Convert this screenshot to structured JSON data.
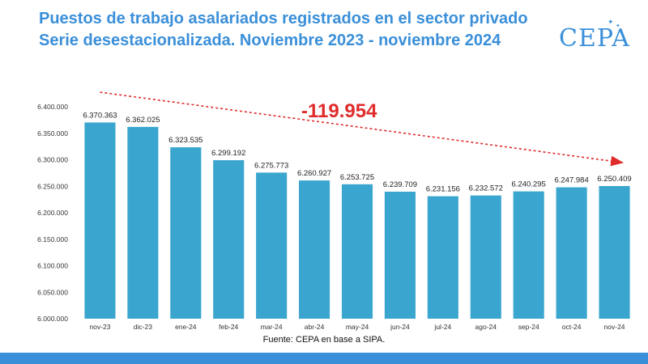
{
  "header": {
    "title_line1": "Puestos de trabajo asalariados registrados en el sector privado",
    "title_line2": "Serie desestacionalizada. Noviembre 2023 - noviembre 2024"
  },
  "logo": {
    "text": "CEPA"
  },
  "source": "Fuente: CEPA en base a SIPA.",
  "colors": {
    "bar": "#3aa6cf",
    "title": "#3a8fd9",
    "arrow": "#e02b2b",
    "footer": "#3a8fd9"
  },
  "chart_data": {
    "type": "bar",
    "categories": [
      "nov-23",
      "dic-23",
      "ene-24",
      "feb-24",
      "mar-24",
      "abr-24",
      "may-24",
      "jun-24",
      "jul-24",
      "ago-24",
      "sep-24",
      "oct-24",
      "nov-24"
    ],
    "values": [
      6370363,
      6362025,
      6323535,
      6299192,
      6275773,
      6260927,
      6253725,
      6239709,
      6231156,
      6232572,
      6240295,
      6247984,
      6250409
    ],
    "value_labels": [
      "6.370.363",
      "6.362.025",
      "6.323.535",
      "6.299.192",
      "6.275.773",
      "6.260.927",
      "6.253.725",
      "6.239.709",
      "6.231.156",
      "6.232.572",
      "6.240.295",
      "6.247.984",
      "6.250.409"
    ],
    "ylim": [
      6000000,
      6400000
    ],
    "yticks": [
      6000000,
      6050000,
      6100000,
      6150000,
      6200000,
      6250000,
      6300000,
      6350000,
      6400000
    ],
    "ytick_labels": [
      "6.000.000",
      "6.050.000",
      "6.100.000",
      "6.150.000",
      "6.200.000",
      "6.250.000",
      "6.300.000",
      "6.350.000",
      "6.400.000"
    ],
    "annotation": "-119.954",
    "grid": false,
    "xlabel": "",
    "ylabel": ""
  }
}
